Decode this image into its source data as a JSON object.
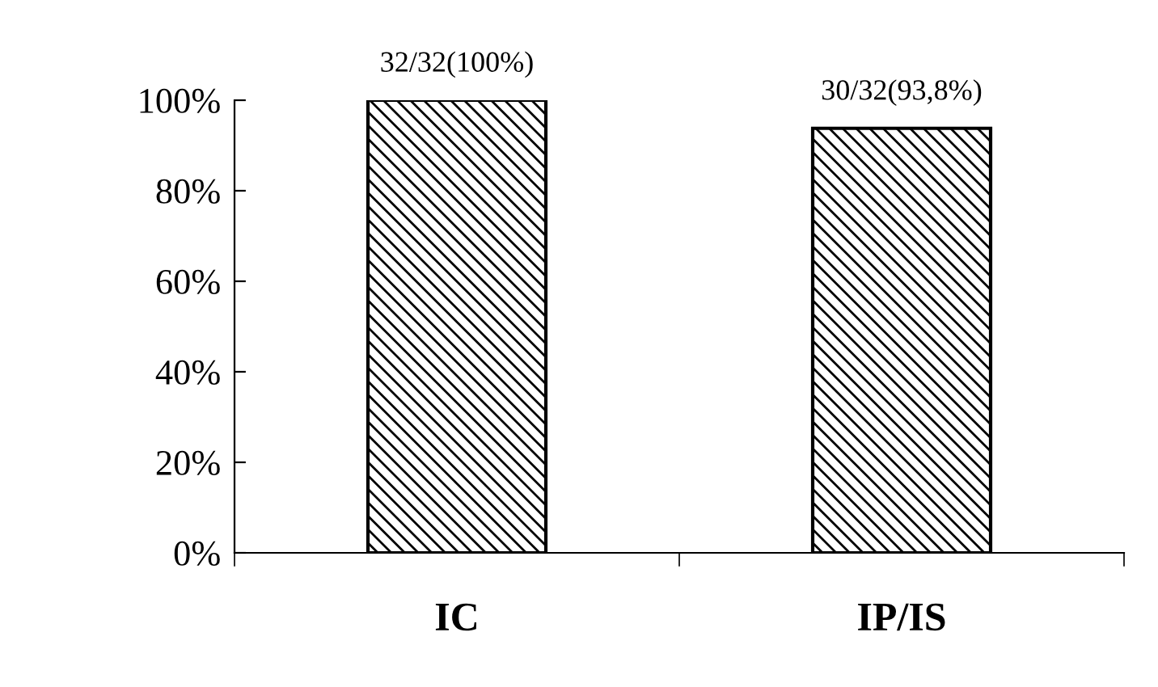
{
  "chart_data": {
    "type": "bar",
    "categories": [
      "IC",
      "IP/IS"
    ],
    "series": [
      {
        "color": "#000000",
        "values": [
          100,
          93.8
        ],
        "value_labels": [
          "32/32(100%)",
          "30/32(93,8%)"
        ]
      }
    ],
    "ylim": [
      0,
      100
    ],
    "yticks": [
      {
        "value": 0,
        "label": "0%"
      },
      {
        "value": 20,
        "label": "20%"
      },
      {
        "value": 40,
        "label": "40%"
      },
      {
        "value": 60,
        "label": "60%"
      },
      {
        "value": 80,
        "label": "80%"
      },
      {
        "value": 100,
        "label": "100%"
      }
    ],
    "grid": false,
    "legend": false
  }
}
